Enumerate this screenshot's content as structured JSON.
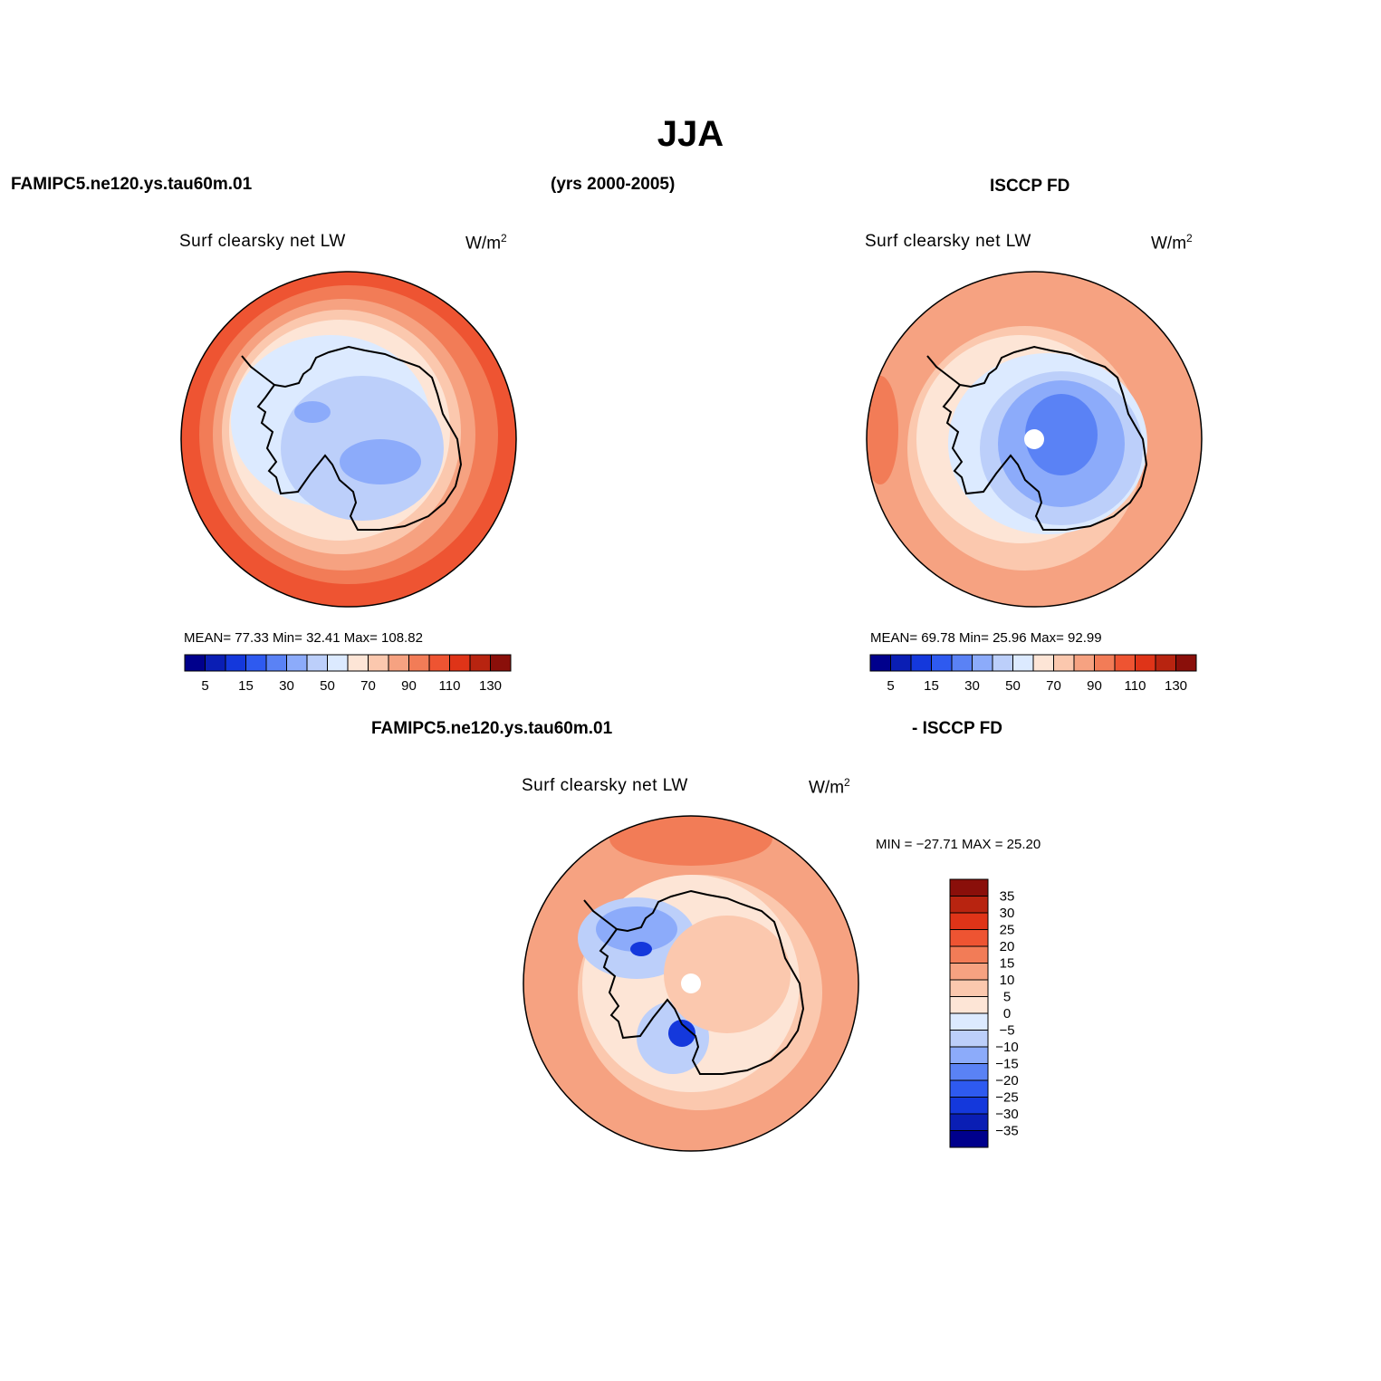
{
  "figure": {
    "title": "JJA",
    "header_left": "FAMIPC5.ne120.ys.tau60m.01",
    "header_center": "(yrs 2000-2005)",
    "header_right": "ISCCP FD",
    "diff_header_left": "FAMIPC5.ne120.ys.tau60m.01",
    "diff_header_right": "- ISCCP FD"
  },
  "panels": {
    "model": {
      "title": "Surf clearsky net LW",
      "unit_base": "W/m",
      "unit_exp": "2",
      "stats_text": "MEAN=  77.33  Min=  32.41  Max=  108.82",
      "mean": 77.33,
      "min": 32.41,
      "max": 108.82
    },
    "obs": {
      "title": "Surf clearsky net LW",
      "unit_base": "W/m",
      "unit_exp": "2",
      "stats_text": "MEAN=  69.78  Min=  25.96  Max=   92.99",
      "mean": 69.78,
      "min": 25.96,
      "max": 92.99
    },
    "diff": {
      "title": "Surf clearsky net LW",
      "unit_base": "W/m",
      "unit_exp": "2",
      "stats_text": "MIN = −27.71 MAX =  25.20",
      "min": -27.71,
      "max": 25.2
    }
  },
  "colorbars": {
    "absolute": {
      "colors": [
        "#00008c",
        "#0a1eb4",
        "#1438dc",
        "#2e5af0",
        "#5a82f5",
        "#8cabfa",
        "#bccffa",
        "#dceaff",
        "#fde5d6",
        "#fbc8ae",
        "#f6a281",
        "#f27c57",
        "#ee5432",
        "#df3418",
        "#b82410",
        "#8a0f0a"
      ],
      "labels": [
        "5",
        "15",
        "30",
        "50",
        "70",
        "90",
        "110",
        "130"
      ]
    },
    "difference": {
      "colors": [
        "#00008c",
        "#0a1eb4",
        "#1438dc",
        "#2e5af0",
        "#5a82f5",
        "#8cabfa",
        "#bccffa",
        "#dceaff",
        "#fde5d6",
        "#fbc8ae",
        "#f6a281",
        "#f27c57",
        "#ee5432",
        "#df3418",
        "#b82410",
        "#8a0f0a"
      ],
      "labels": [
        "35",
        "30",
        "25",
        "20",
        "15",
        "10",
        "5",
        "0",
        "−5",
        "−10",
        "−15",
        "−20",
        "−25",
        "−30",
        "−35"
      ]
    }
  }
}
